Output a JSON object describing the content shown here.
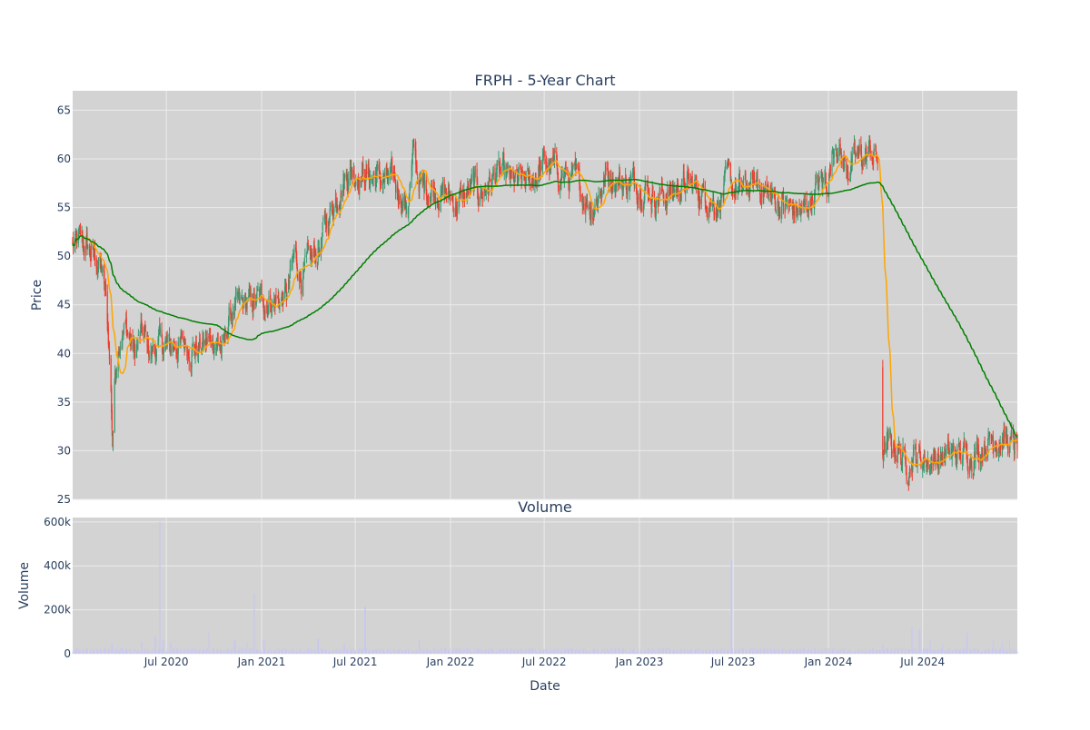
{
  "colors": {
    "plot_bg": "#d3d3d3",
    "grid": "#ebebeb",
    "increasing": "#3d9970",
    "decreasing": "#ef3b2c",
    "ma_short": "#ffa500",
    "ma_long": "#008000",
    "volume": "#c8c8f0",
    "text": "#2a3f5f"
  },
  "chart_data": [
    {
      "type": "candlestick",
      "title": "FRPH - 5-Year Chart",
      "xlabel": "",
      "ylabel": "Price",
      "ylim": [
        25,
        67
      ],
      "xlim": [
        "2020-01-02",
        "2024-12-31"
      ],
      "yticks": [
        25,
        30,
        35,
        40,
        45,
        50,
        55,
        60,
        65
      ],
      "grid": true,
      "close_anchors": [
        [
          "2020-01-02",
          51
        ],
        [
          "2020-01-20",
          51.5
        ],
        [
          "2020-02-10",
          50
        ],
        [
          "2020-02-26",
          49
        ],
        [
          "2020-03-05",
          46
        ],
        [
          "2020-03-12",
          41
        ],
        [
          "2020-03-16",
          36
        ],
        [
          "2020-03-19",
          31
        ],
        [
          "2020-03-24",
          38
        ],
        [
          "2020-04-01",
          42
        ],
        [
          "2020-04-15",
          42.5
        ],
        [
          "2020-05-01",
          40
        ],
        [
          "2020-05-15",
          42
        ],
        [
          "2020-06-01",
          40
        ],
        [
          "2020-06-15",
          41
        ],
        [
          "2020-07-01",
          40.5
        ],
        [
          "2020-08-01",
          41
        ],
        [
          "2020-09-01",
          40.5
        ],
        [
          "2020-10-01",
          41.5
        ],
        [
          "2020-10-20",
          40.5
        ],
        [
          "2020-11-01",
          44
        ],
        [
          "2020-12-01",
          45
        ],
        [
          "2021-01-01",
          45.5
        ],
        [
          "2021-02-01",
          45.5
        ],
        [
          "2021-02-20",
          46
        ],
        [
          "2021-03-05",
          50
        ],
        [
          "2021-03-20",
          48
        ],
        [
          "2021-04-15",
          50
        ],
        [
          "2021-05-10",
          54
        ],
        [
          "2021-06-01",
          57
        ],
        [
          "2021-06-20",
          59
        ],
        [
          "2021-07-15",
          58.5
        ],
        [
          "2021-08-15",
          58
        ],
        [
          "2021-09-15",
          57.5
        ],
        [
          "2021-10-10",
          55
        ],
        [
          "2021-10-22",
          60.5
        ],
        [
          "2021-11-05",
          57
        ],
        [
          "2021-12-01",
          57
        ],
        [
          "2022-01-01",
          56
        ],
        [
          "2022-01-15",
          55.5
        ],
        [
          "2022-02-15",
          57
        ],
        [
          "2022-03-01",
          56.5
        ],
        [
          "2022-04-01",
          58.5
        ],
        [
          "2022-05-01",
          57.5
        ],
        [
          "2022-06-01",
          57.5
        ],
        [
          "2022-07-01",
          59.5
        ],
        [
          "2022-08-01",
          58.5
        ],
        [
          "2022-09-01",
          57.5
        ],
        [
          "2022-10-01",
          55
        ],
        [
          "2022-11-01",
          58.5
        ],
        [
          "2022-12-01",
          57.5
        ],
        [
          "2023-01-01",
          57.5
        ],
        [
          "2023-02-01",
          56
        ],
        [
          "2023-03-01",
          56.5
        ],
        [
          "2023-04-01",
          57.5
        ],
        [
          "2023-05-01",
          56.5
        ],
        [
          "2023-06-01",
          55.5
        ],
        [
          "2023-06-20",
          57.5
        ],
        [
          "2023-07-15",
          56.5
        ],
        [
          "2023-08-15",
          57.5
        ],
        [
          "2023-09-15",
          56
        ],
        [
          "2023-10-15",
          55
        ],
        [
          "2023-11-15",
          54.5
        ],
        [
          "2023-12-10",
          57
        ],
        [
          "2024-01-01",
          58
        ],
        [
          "2024-01-15",
          62.5
        ],
        [
          "2024-02-01",
          59
        ],
        [
          "2024-03-01",
          60
        ],
        [
          "2024-03-20",
          60.5
        ],
        [
          "2024-04-05",
          60
        ],
        [
          "2024-04-15",
          30
        ],
        [
          "2024-05-01",
          30.5
        ],
        [
          "2024-05-15",
          30
        ],
        [
          "2024-06-01",
          28.5
        ],
        [
          "2024-06-15",
          29.5
        ],
        [
          "2024-07-15",
          29
        ],
        [
          "2024-08-15",
          29.5
        ],
        [
          "2024-09-15",
          29.5
        ],
        [
          "2024-10-15",
          30
        ],
        [
          "2024-11-01",
          31
        ],
        [
          "2024-11-20",
          31.5
        ],
        [
          "2024-12-10",
          31
        ],
        [
          "2024-12-31",
          30
        ]
      ],
      "ma_short_window": 20,
      "ma_long_window": 200
    },
    {
      "type": "bar",
      "title": "Volume",
      "xlabel": "Date",
      "ylabel": "Volume",
      "ylim": [
        0,
        620000
      ],
      "yticks": [
        0,
        200000,
        400000,
        600000
      ],
      "ytick_labels": [
        "0",
        "200k",
        "400k",
        "600k"
      ],
      "xticks": [
        "2020-07-01",
        "2021-01-01",
        "2021-07-01",
        "2022-01-01",
        "2022-07-01",
        "2023-01-01",
        "2023-07-01",
        "2024-01-01",
        "2024-07-01"
      ],
      "xtick_labels": [
        "Jul 2020",
        "Jan 2021",
        "Jul 2021",
        "Jan 2022",
        "Jul 2022",
        "Jan 2023",
        "Jul 2023",
        "Jan 2024",
        "Jul 2024"
      ],
      "grid": true,
      "baseline_volume": 18000,
      "spikes": [
        [
          "2020-03-18",
          45000
        ],
        [
          "2020-05-15",
          55000
        ],
        [
          "2020-06-10",
          80000
        ],
        [
          "2020-06-19",
          600000
        ],
        [
          "2020-06-25",
          60000
        ],
        [
          "2020-07-10",
          50000
        ],
        [
          "2020-09-20",
          100000
        ],
        [
          "2020-11-10",
          60000
        ],
        [
          "2020-12-05",
          55000
        ],
        [
          "2020-12-18",
          275000
        ],
        [
          "2021-01-05",
          60000
        ],
        [
          "2021-04-20",
          70000
        ],
        [
          "2021-06-10",
          40000
        ],
        [
          "2021-07-20",
          215000
        ],
        [
          "2021-11-01",
          65000
        ],
        [
          "2023-06-28",
          425000
        ],
        [
          "2024-04-15",
          40000
        ],
        [
          "2024-06-10",
          120000
        ],
        [
          "2024-06-25",
          110000
        ],
        [
          "2024-07-15",
          60000
        ],
        [
          "2024-08-10",
          50000
        ],
        [
          "2024-09-25",
          95000
        ],
        [
          "2024-11-15",
          60000
        ],
        [
          "2024-12-01",
          55000
        ],
        [
          "2024-12-15",
          60000
        ]
      ]
    }
  ]
}
